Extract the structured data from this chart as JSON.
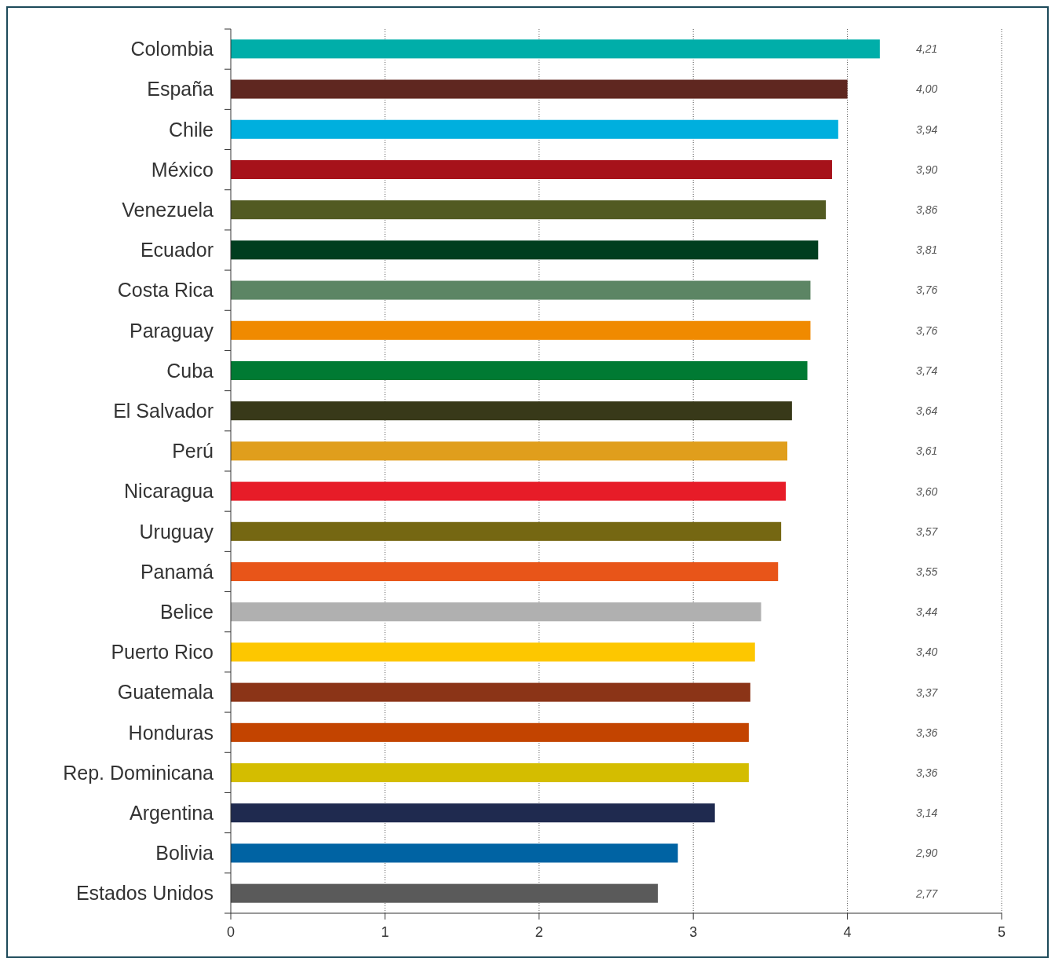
{
  "chart_data": {
    "type": "bar",
    "orientation": "horizontal",
    "categories": [
      "Colombia",
      "España",
      "Chile",
      "México",
      "Venezuela",
      "Ecuador",
      "Costa Rica",
      "Paraguay",
      "Cuba",
      "El Salvador",
      "Perú",
      "Nicaragua",
      "Uruguay",
      "Panamá",
      "Belice",
      "Puerto Rico",
      "Guatemala",
      "Honduras",
      "Rep. Dominicana",
      "Argentina",
      "Bolivia",
      "Estados Unidos"
    ],
    "values": [
      4.21,
      4.0,
      3.94,
      3.9,
      3.86,
      3.81,
      3.76,
      3.76,
      3.74,
      3.64,
      3.61,
      3.6,
      3.57,
      3.55,
      3.44,
      3.4,
      3.37,
      3.36,
      3.36,
      3.14,
      2.9,
      2.77
    ],
    "value_labels": [
      "4,21",
      "4,00",
      "3,94",
      "3,90",
      "3,86",
      "3,81",
      "3,76",
      "3,76",
      "3,74",
      "3,64",
      "3,61",
      "3,60",
      "3,57",
      "3,55",
      "3,44",
      "3,40",
      "3,37",
      "3,36",
      "3,36",
      "3,14",
      "2,90",
      "2,77"
    ],
    "colors": [
      "#00aea9",
      "#5f2720",
      "#00afde",
      "#a6121a",
      "#525a22",
      "#003e1f",
      "#5c8564",
      "#f08a00",
      "#007a33",
      "#383919",
      "#e09e1c",
      "#e71c28",
      "#756712",
      "#e85519",
      "#b0b0b0",
      "#fdc700",
      "#8b3417",
      "#c34400",
      "#d4bd00",
      "#1f2a4f",
      "#0063a3",
      "#5a5a5a"
    ],
    "xlim": [
      0,
      5
    ],
    "xticks": [
      0,
      1,
      2,
      3,
      4,
      5
    ],
    "grid": "x"
  }
}
